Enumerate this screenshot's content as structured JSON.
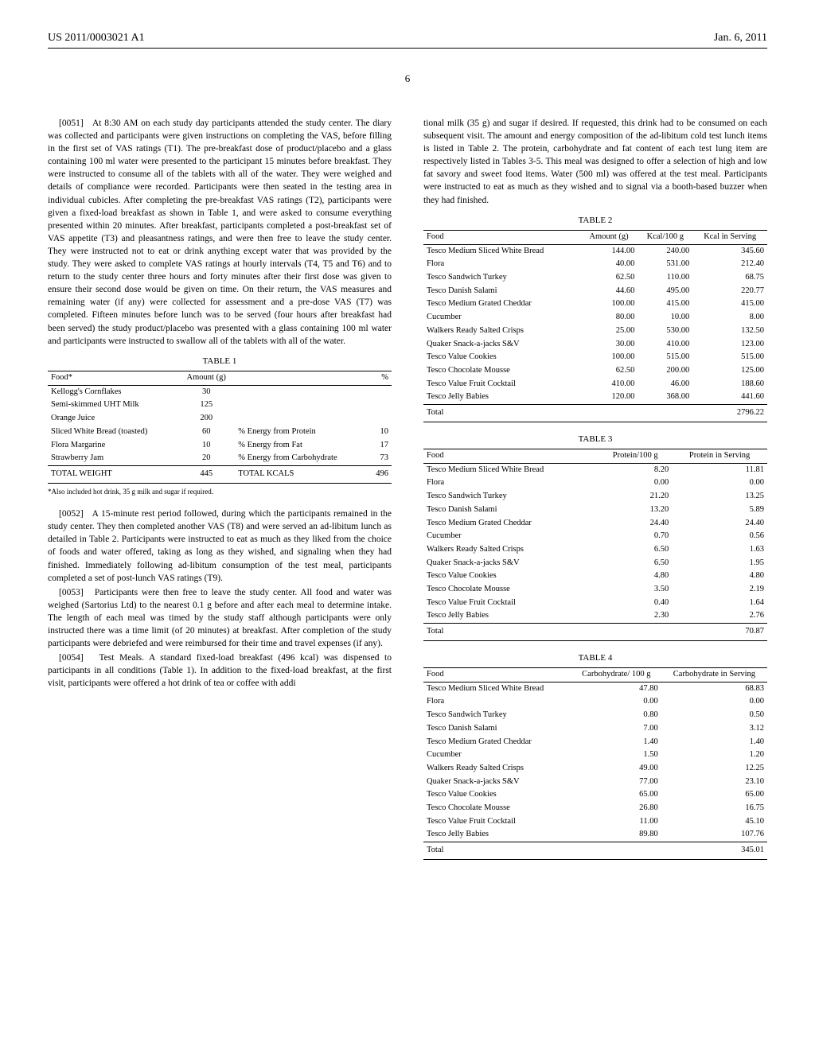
{
  "header": {
    "doc_number": "US 2011/0003021 A1",
    "date": "Jan. 6, 2011",
    "page_number": "6"
  },
  "paragraphs": {
    "p51_num": "[0051]",
    "p51": "At 8:30 AM on each study day participants attended the study center. The diary was collected and participants were given instructions on completing the VAS, before filling in the first set of VAS ratings (T1). The pre-breakfast dose of product/placebo and a glass containing 100 ml water were presented to the participant 15 minutes before breakfast. They were instructed to consume all of the tablets with all of the water. They were weighed and details of compliance were recorded. Participants were then seated in the testing area in individual cubicles. After completing the pre-breakfast VAS ratings (T2), participants were given a fixed-load breakfast as shown in Table 1, and were asked to consume everything presented within 20 minutes. After breakfast, participants completed a post-breakfast set of VAS appetite (T3) and pleasantness ratings, and were then free to leave the study center. They were instructed not to eat or drink anything except water that was provided by the study. They were asked to complete VAS ratings at hourly intervals (T4, T5 and T6) and to return to the study center three hours and forty minutes after their first dose was given to ensure their second dose would be given on time. On their return, the VAS measures and remaining water (if any) were collected for assessment and a pre-dose VAS (T7) was completed. Fifteen minutes before lunch was to be served (four hours after breakfast had been served) the study product/placebo was presented with a glass containing 100 ml water and participants were instructed to swallow all of the tablets with all of the water.",
    "p52_num": "[0052]",
    "p52": "A 15-minute rest period followed, during which the participants remained in the study center. They then completed another VAS (T8) and were served an ad-libitum lunch as detailed in Table 2. Participants were instructed to eat as much as they liked from the choice of foods and water offered, taking as long as they wished, and signaling when they had finished. Immediately following ad-libitum consumption of the test meal, participants completed a set of post-lunch VAS ratings (T9).",
    "p53_num": "[0053]",
    "p53": "Participants were then free to leave the study center. All food and water was weighed (Sartorius Ltd) to the nearest 0.1 g before and after each meal to determine intake. The length of each meal was timed by the study staff although participants were only instructed there was a time limit (of 20 minutes) at breakfast. After completion of the study participants were debriefed and were reimbursed for their time and travel expenses (if any).",
    "p54_num": "[0054]",
    "p54": "Test Meals. A standard fixed-load breakfast (496 kcal) was dispensed to participants in all conditions (Table 1). In addition to the fixed-load breakfast, at the first visit, participants were offered a hot drink of tea or coffee with addi",
    "right_top": "tional milk (35 g) and sugar if desired. If requested, this drink had to be consumed on each subsequent visit. The amount and energy composition of the ad-libitum cold test lunch items is listed in Table 2. The protein, carbohydrate and fat content of each test lung item are respectively listed in Tables 3-5. This meal was designed to offer a selection of high and low fat savory and sweet food items. Water (500 ml) was offered at the test meal. Participants were instructed to eat as much as they wished and to signal via a booth-based buzzer when they had finished."
  },
  "table1": {
    "title": "TABLE 1",
    "col_food": "Food*",
    "col_amount": "Amount (g)",
    "col_pct": "%",
    "rows": [
      {
        "food": "Kellogg's Cornflakes",
        "amount": "30",
        "label": "",
        "pct": ""
      },
      {
        "food": "Semi-skimmed UHT Milk",
        "amount": "125",
        "label": "",
        "pct": ""
      },
      {
        "food": "Orange Juice",
        "amount": "200",
        "label": "",
        "pct": ""
      },
      {
        "food": "Sliced White Bread (toasted)",
        "amount": "60",
        "label": "% Energy from Protein",
        "pct": "10"
      },
      {
        "food": "Flora Margarine",
        "amount": "10",
        "label": "% Energy from Fat",
        "pct": "17"
      },
      {
        "food": "Strawberry Jam",
        "amount": "20",
        "label": "% Energy from Carbohydrate",
        "pct": "73"
      }
    ],
    "total_weight_label": "TOTAL WEIGHT",
    "total_weight": "445",
    "total_kcal_label": "TOTAL KCALS",
    "total_kcal": "496",
    "footnote": "*Also included hot drink, 35 g milk and sugar if required."
  },
  "table2": {
    "title": "TABLE 2",
    "col_food": "Food",
    "col_amount": "Amount (g)",
    "col_kcal100": "Kcal/100 g",
    "col_kcalserv": "Kcal in Serving",
    "rows": [
      {
        "food": "Tesco Medium Sliced White Bread",
        "a": "144.00",
        "b": "240.00",
        "c": "345.60"
      },
      {
        "food": "Flora",
        "a": "40.00",
        "b": "531.00",
        "c": "212.40"
      },
      {
        "food": "Tesco Sandwich Turkey",
        "a": "62.50",
        "b": "110.00",
        "c": "68.75"
      },
      {
        "food": "Tesco Danish Salami",
        "a": "44.60",
        "b": "495.00",
        "c": "220.77"
      },
      {
        "food": "Tesco Medium Grated Cheddar",
        "a": "100.00",
        "b": "415.00",
        "c": "415.00"
      },
      {
        "food": "Cucumber",
        "a": "80.00",
        "b": "10.00",
        "c": "8.00"
      },
      {
        "food": "Walkers Ready Salted Crisps",
        "a": "25.00",
        "b": "530.00",
        "c": "132.50"
      },
      {
        "food": "Quaker Snack-a-jacks S&V",
        "a": "30.00",
        "b": "410.00",
        "c": "123.00"
      },
      {
        "food": "Tesco Value Cookies",
        "a": "100.00",
        "b": "515.00",
        "c": "515.00"
      },
      {
        "food": "Tesco Chocolate Mousse",
        "a": "62.50",
        "b": "200.00",
        "c": "125.00"
      },
      {
        "food": "Tesco Value Fruit Cocktail",
        "a": "410.00",
        "b": "46.00",
        "c": "188.60"
      },
      {
        "food": "Tesco Jelly Babies",
        "a": "120.00",
        "b": "368.00",
        "c": "441.60"
      }
    ],
    "total_label": "Total",
    "total": "2796.22"
  },
  "table3": {
    "title": "TABLE 3",
    "col_food": "Food",
    "col_b": "Protein/100 g",
    "col_c": "Protein in Serving",
    "rows": [
      {
        "food": "Tesco Medium Sliced White Bread",
        "b": "8.20",
        "c": "11.81"
      },
      {
        "food": "Flora",
        "b": "0.00",
        "c": "0.00"
      },
      {
        "food": "Tesco Sandwich Turkey",
        "b": "21.20",
        "c": "13.25"
      },
      {
        "food": "Tesco Danish Salami",
        "b": "13.20",
        "c": "5.89"
      },
      {
        "food": "Tesco Medium Grated Cheddar",
        "b": "24.40",
        "c": "24.40"
      },
      {
        "food": "Cucumber",
        "b": "0.70",
        "c": "0.56"
      },
      {
        "food": "Walkers Ready Salted Crisps",
        "b": "6.50",
        "c": "1.63"
      },
      {
        "food": "Quaker Snack-a-jacks S&V",
        "b": "6.50",
        "c": "1.95"
      },
      {
        "food": "Tesco Value Cookies",
        "b": "4.80",
        "c": "4.80"
      },
      {
        "food": "Tesco Chocolate Mousse",
        "b": "3.50",
        "c": "2.19"
      },
      {
        "food": "Tesco Value Fruit Cocktail",
        "b": "0.40",
        "c": "1.64"
      },
      {
        "food": "Tesco Jelly Babies",
        "b": "2.30",
        "c": "2.76"
      }
    ],
    "total_label": "Total",
    "total": "70.87"
  },
  "table4": {
    "title": "TABLE 4",
    "col_food": "Food",
    "col_b": "Carbohydrate/ 100 g",
    "col_c": "Carbohydrate in Serving",
    "rows": [
      {
        "food": "Tesco Medium Sliced White Bread",
        "b": "47.80",
        "c": "68.83"
      },
      {
        "food": "Flora",
        "b": "0.00",
        "c": "0.00"
      },
      {
        "food": "Tesco Sandwich Turkey",
        "b": "0.80",
        "c": "0.50"
      },
      {
        "food": "Tesco Danish Salami",
        "b": "7.00",
        "c": "3.12"
      },
      {
        "food": "Tesco Medium Grated Cheddar",
        "b": "1.40",
        "c": "1.40"
      },
      {
        "food": "Cucumber",
        "b": "1.50",
        "c": "1.20"
      },
      {
        "food": "Walkers Ready Salted Crisps",
        "b": "49.00",
        "c": "12.25"
      },
      {
        "food": "Quaker Snack-a-jacks S&V",
        "b": "77.00",
        "c": "23.10"
      },
      {
        "food": "Tesco Value Cookies",
        "b": "65.00",
        "c": "65.00"
      },
      {
        "food": "Tesco Chocolate Mousse",
        "b": "26.80",
        "c": "16.75"
      },
      {
        "food": "Tesco Value Fruit Cocktail",
        "b": "11.00",
        "c": "45.10"
      },
      {
        "food": "Tesco Jelly Babies",
        "b": "89.80",
        "c": "107.76"
      }
    ],
    "total_label": "Total",
    "total": "345.01"
  }
}
